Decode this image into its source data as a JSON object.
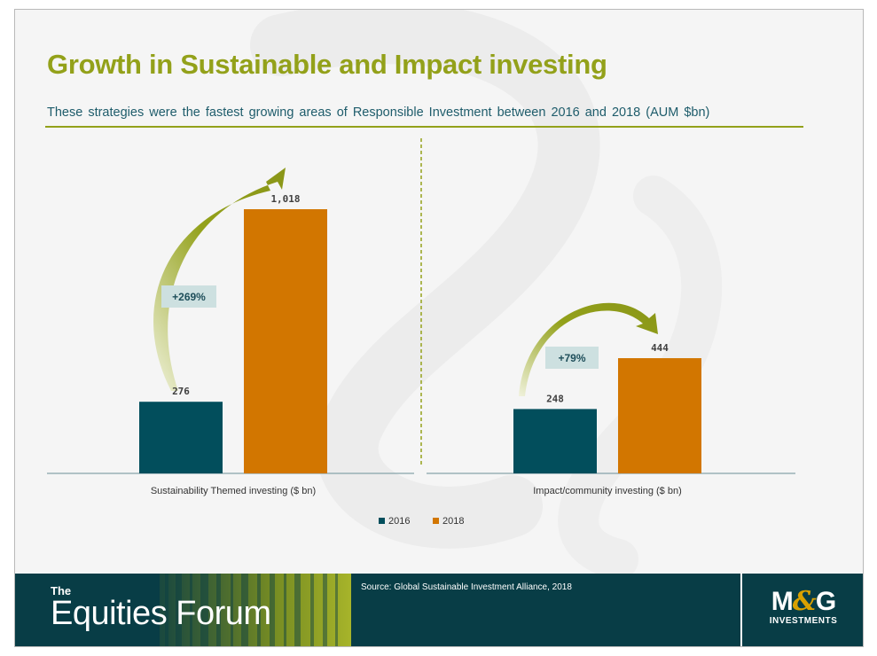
{
  "title": "Growth in Sustainable and Impact investing",
  "subtitle": "These strategies were the fastest growing areas of Responsible Investment between 2016 and 2018 (AUM $bn)",
  "colors": {
    "series_2016": "#024e5c",
    "series_2018": "#d27600",
    "arrow": "#93a11a",
    "growth_box": "#cde0e0",
    "footer": "#083d46",
    "title": "#93a11a",
    "subtitle": "#1e5c6b"
  },
  "chart_data": {
    "type": "bar",
    "categories": [
      "Sustainability Themed investing ($ bn)",
      "Impact/community investing ($ bn)"
    ],
    "series": [
      {
        "name": "2016",
        "values": [
          276,
          248
        ],
        "labels": [
          "276",
          "248"
        ]
      },
      {
        "name": "2018",
        "values": [
          1018,
          444
        ],
        "labels": [
          "1,018",
          "444"
        ]
      }
    ],
    "growth_labels": [
      "+269%",
      "+79%"
    ],
    "ylim": [
      0,
      1018
    ],
    "legend_position": "bottom",
    "grid": false
  },
  "footer": {
    "brand_the": "The",
    "brand_name": "Equities Forum",
    "source": "Source: Global Sustainable Investment Alliance, 2018",
    "logo_main_left": "M",
    "logo_amp": "&",
    "logo_main_right": "G",
    "logo_sub": "INVESTMENTS"
  }
}
